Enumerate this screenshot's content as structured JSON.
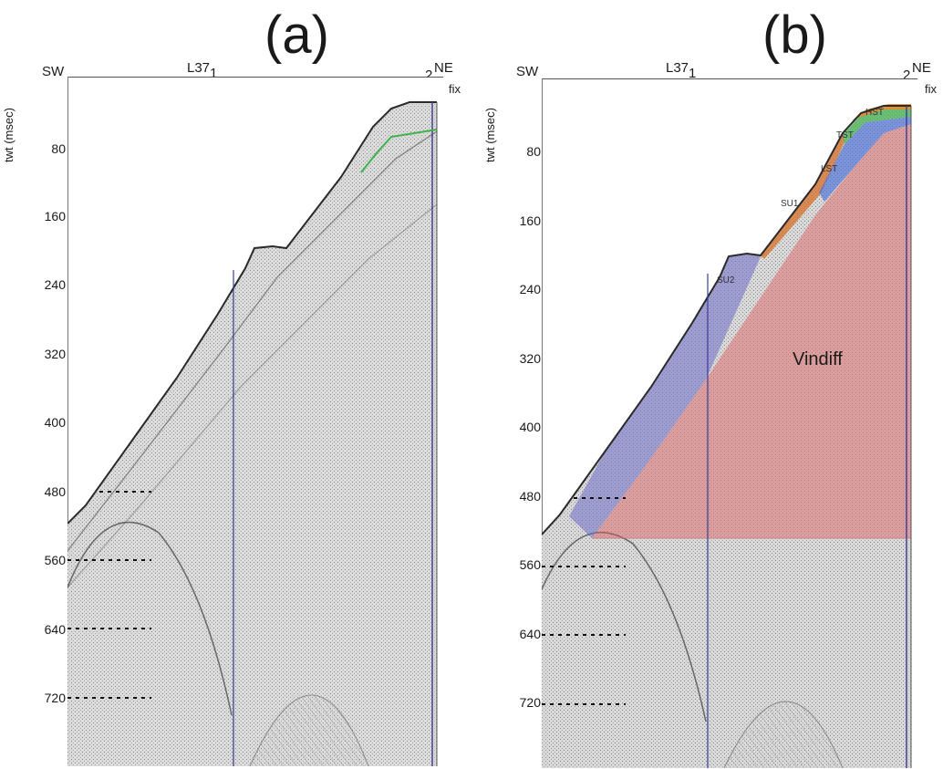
{
  "panels": [
    {
      "id": "a",
      "title": "(a)",
      "left_label": "SW",
      "line_label": "L37",
      "line_sub": "1",
      "right_num": "2",
      "right_label": "NE",
      "fix_label": "fix",
      "y_axis_label": "twt (msec)",
      "ticks": [
        "80",
        "160",
        "240",
        "320",
        "400",
        "480",
        "560",
        "640",
        "720"
      ]
    },
    {
      "id": "b",
      "title": "(b)",
      "left_label": "SW",
      "line_label": "L37",
      "line_sub": "1",
      "right_num": "2",
      "right_label": "NE",
      "fix_label": "fix",
      "y_axis_label": "twt (msec)",
      "ticks": [
        "80",
        "160",
        "240",
        "320",
        "400",
        "480",
        "560",
        "640",
        "720"
      ],
      "units": [
        "HST",
        "TST",
        "LST",
        "SU1",
        "SU2"
      ],
      "main_label": "Vindiff",
      "colors": {
        "hst": "#e98a2c",
        "tst": "#3db34a",
        "lst": "#4a6fd8",
        "su1": "#d86a1e",
        "su2": "#6d70c8",
        "vindiff": "#e35b5b"
      }
    }
  ]
}
